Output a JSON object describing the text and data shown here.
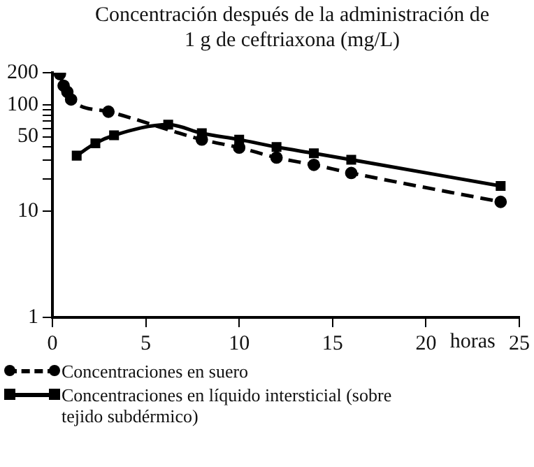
{
  "chart_data": {
    "type": "line",
    "title": "Concentración después de la administración de 1 g de ceftriaxona (mg/L)",
    "xlabel": "horas",
    "log": "y",
    "xlim": [
      0,
      25
    ],
    "xticks": [
      0,
      5,
      10,
      15,
      20,
      25
    ],
    "ylim": [
      1,
      200
    ],
    "yticks": [
      1,
      10,
      {
        "value": 20,
        "label": null
      },
      {
        "value": 30,
        "label": null
      },
      {
        "value": 40,
        "label": null
      },
      50,
      {
        "value": 60,
        "label": null
      },
      {
        "value": 70,
        "label": null
      },
      {
        "value": 80,
        "label": null
      },
      {
        "value": 90,
        "label": null
      },
      100,
      200
    ],
    "grid": false,
    "legend": "bottom",
    "series": [
      {
        "name": "Concentraciones en suero",
        "color": "#000000",
        "line_style": "dashed",
        "marker": "circle",
        "x": [
          0.4,
          0.6,
          0.8,
          1,
          3,
          8,
          10,
          12,
          14,
          16,
          24
        ],
        "values": [
          194,
          151,
          132,
          112,
          86,
          47,
          39.5,
          31.8,
          27.2,
          22.8,
          12.2
        ]
      },
      {
        "name": "Concentraciones en líquido intersticial (sobre tejido subdérmico)",
        "color": "#000000",
        "line_style": "solid",
        "marker": "square",
        "x": [
          1.3,
          2.3,
          3.3,
          6.2,
          8,
          10,
          12,
          14,
          16,
          24
        ],
        "values": [
          33.2,
          43.4,
          51.6,
          65,
          54,
          47,
          40,
          34.9,
          30.4,
          17.2
        ]
      }
    ]
  }
}
